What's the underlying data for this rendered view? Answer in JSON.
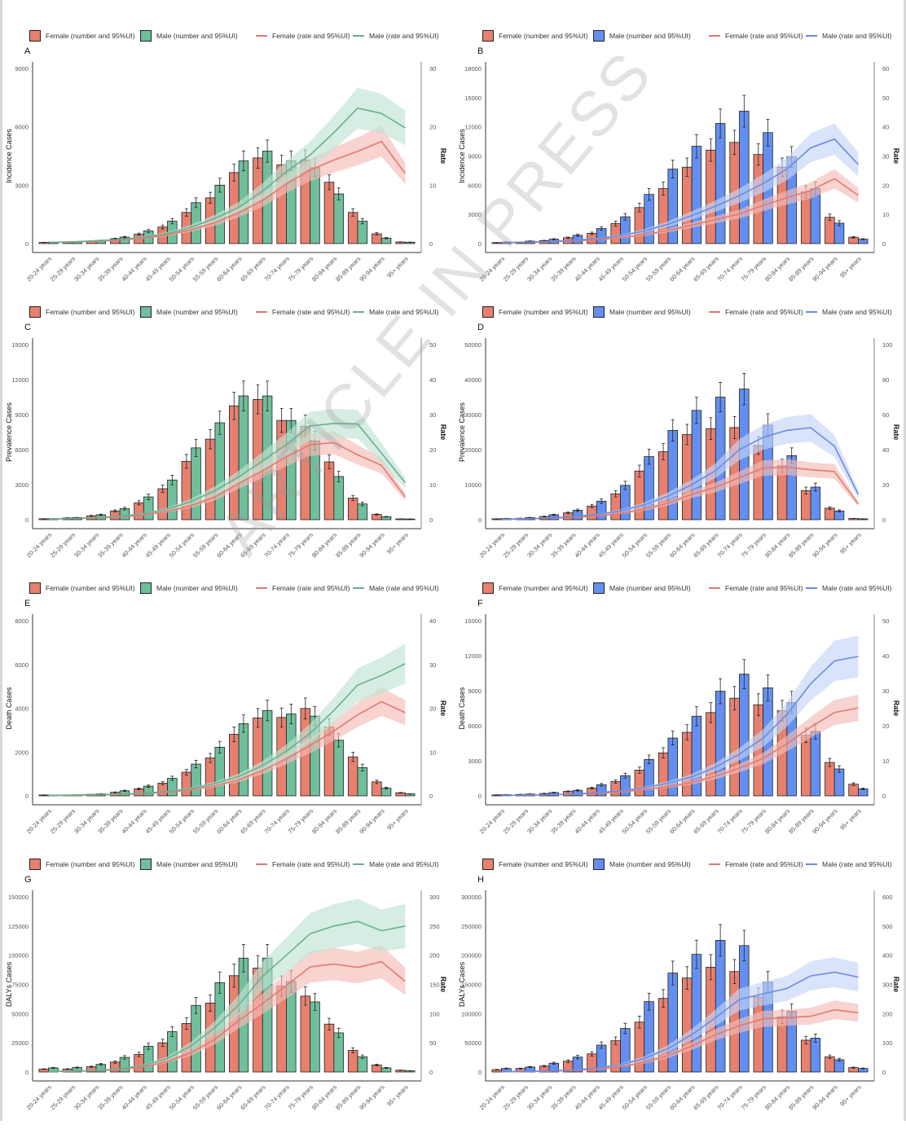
{
  "colors": {
    "female_bar": "#e8806f",
    "male_green": "#6fbf9c",
    "male_blue": "#6390f0",
    "female_line": "#e07a72",
    "male_green_line": "#6aaf92",
    "male_blue_line": "#6d8be0",
    "female_band": "#f4bcb5",
    "male_green_band": "#bfe3d3",
    "male_blue_band": "#c4d4f8"
  },
  "watermark": "ARTICLE IN PRESS",
  "categories": [
    "20-24 years",
    "25-29 years",
    "30-34 years",
    "35-39 years",
    "40-44 years",
    "45-49 years",
    "50-54 years",
    "55-59 years",
    "60-64 years",
    "65-69 years",
    "70-74 years",
    "75-79 years",
    "80-84 years",
    "85-89 years",
    "90-94 years",
    "95+ years"
  ],
  "legend_green": {
    "female_number": "Female (number and 95%UI)",
    "male_number": "Male (number and 95%UI)",
    "female_rate": "Female (rate and 95%UI)",
    "male_rate": "Male (rate and 95%UI)"
  },
  "legend_blue": {
    "female_number": "Female (number and 95%UI)",
    "male_number": "Male (number and 95%UI)",
    "female_rate": "Female (rate and 95%UI)",
    "male_rate": "Male (rate and 95%UI)"
  },
  "chart_data": [
    {
      "panel": "A",
      "type": "bar+line",
      "male_palette": "green",
      "ylabel": "Incidence Cases",
      "y2label": "Rate",
      "ylim": [
        0,
        9000
      ],
      "yticks": [
        0,
        3000,
        6000,
        9000
      ],
      "y2lim": [
        0,
        30
      ],
      "y2ticks": [
        0,
        10,
        20,
        30
      ],
      "female_number": [
        60,
        70,
        120,
        250,
        480,
        850,
        1600,
        2350,
        3650,
        4400,
        4050,
        4300,
        3150,
        1600,
        500,
        80
      ],
      "male_number": [
        70,
        90,
        160,
        330,
        650,
        1150,
        2100,
        3000,
        4250,
        4750,
        4250,
        3900,
        2550,
        1150,
        280,
        70
      ],
      "female_rate": [
        0.2,
        0.3,
        0.4,
        0.6,
        0.9,
        1.5,
        2.4,
        3.6,
        5.3,
        7.4,
        10.2,
        12.6,
        14.3,
        15.8,
        17.5,
        12.0
      ],
      "male_rate": [
        0.2,
        0.3,
        0.5,
        0.7,
        1.1,
        1.7,
        2.8,
        4.3,
        6.2,
        9.0,
        12.3,
        15.2,
        19.0,
        23.2,
        22.3,
        19.8
      ]
    },
    {
      "panel": "B",
      "type": "bar+line",
      "male_palette": "blue",
      "ylabel": "Incidence Cases",
      "y2label": "Rate",
      "ylim": [
        0,
        18000
      ],
      "yticks": [
        0,
        3000,
        6000,
        9000,
        12000,
        15000,
        18000
      ],
      "y2lim": [
        0,
        60
      ],
      "y2ticks": [
        0,
        10,
        20,
        30,
        40,
        50,
        60
      ],
      "female_number": [
        100,
        150,
        300,
        600,
        1050,
        2050,
        3700,
        5650,
        7850,
        9600,
        10400,
        9150,
        7850,
        5300,
        2700,
        650
      ],
      "male_number": [
        150,
        250,
        450,
        850,
        1550,
        2750,
        5050,
        7650,
        10000,
        12350,
        13600,
        11400,
        8900,
        5650,
        2100,
        450
      ],
      "female_rate": [
        0.3,
        0.4,
        0.6,
        0.9,
        1.3,
        2.0,
        3.0,
        4.5,
        6.3,
        8.2,
        10.1,
        13.1,
        15.7,
        18.2,
        22.2,
        16.5
      ],
      "male_rate": [
        0.3,
        0.5,
        0.7,
        1.1,
        1.7,
        2.7,
        4.3,
        6.6,
        9.6,
        12.8,
        16.4,
        20.6,
        25.5,
        32.8,
        35.8,
        27.1
      ]
    },
    {
      "panel": "C",
      "type": "bar+line",
      "male_palette": "green",
      "ylabel": "Prevalence Cases",
      "y2label": "Rate",
      "ylim": [
        0,
        15000
      ],
      "yticks": [
        0,
        3000,
        6000,
        9000,
        12000,
        15000
      ],
      "y2lim": [
        0,
        50
      ],
      "y2ticks": [
        0,
        10,
        20,
        30,
        40,
        50
      ],
      "female_number": [
        80,
        150,
        330,
        750,
        1450,
        2650,
        5000,
        6900,
        9750,
        10300,
        8500,
        8000,
        4950,
        1850,
        450,
        70
      ],
      "male_number": [
        100,
        180,
        420,
        950,
        1950,
        3400,
        6150,
        8300,
        10600,
        10600,
        8500,
        6750,
        3700,
        1350,
        250,
        60
      ],
      "female_rate": [
        0.2,
        0.3,
        0.5,
        0.8,
        1.3,
        2.4,
        4.0,
        6.5,
        10.4,
        14.0,
        18.0,
        21.4,
        22.0,
        18.5,
        15.5,
        6.5
      ],
      "male_rate": [
        0.2,
        0.3,
        0.6,
        1.0,
        1.7,
        3.0,
        5.2,
        8.3,
        12.2,
        16.8,
        21.5,
        26.8,
        27.5,
        27.3,
        19.0,
        10.5
      ]
    },
    {
      "panel": "D",
      "type": "bar+line",
      "male_palette": "blue",
      "ylabel": "Prevalence Cases",
      "y2label": "Rate",
      "ylim": [
        0,
        50000
      ],
      "yticks": [
        0,
        10000,
        20000,
        30000,
        40000,
        50000
      ],
      "y2lim": [
        0,
        100
      ],
      "y2ticks": [
        0,
        20,
        40,
        60,
        80,
        100
      ],
      "female_number": [
        250,
        400,
        900,
        1950,
        3900,
        7400,
        13900,
        19400,
        24300,
        26000,
        26300,
        21200,
        15400,
        8300,
        3300,
        350
      ],
      "male_number": [
        350,
        600,
        1400,
        2700,
        5300,
        9800,
        18000,
        25500,
        31200,
        35000,
        37300,
        27000,
        18300,
        9300,
        2500,
        250
      ],
      "female_rate": [
        0.3,
        0.5,
        0.8,
        1.3,
        2.2,
        3.6,
        6.0,
        9.5,
        14.5,
        18.5,
        24.0,
        29.5,
        30.0,
        28.5,
        27.5,
        9.0
      ],
      "male_rate": [
        0.3,
        0.5,
        1.0,
        1.7,
        3.0,
        5.0,
        8.5,
        13.5,
        20.0,
        28.0,
        40.0,
        47.0,
        51.0,
        52.5,
        42.0,
        14.5
      ]
    },
    {
      "panel": "E",
      "type": "bar+line",
      "male_palette": "green",
      "ylabel": "Death Cases",
      "y2label": "Rate",
      "ylim": [
        0,
        8000
      ],
      "yticks": [
        0,
        2000,
        4000,
        6000,
        8000
      ],
      "y2lim": [
        0,
        40
      ],
      "y2ticks": [
        0,
        10,
        20,
        30,
        40
      ],
      "female_number": [
        40,
        40,
        70,
        160,
        320,
        580,
        1080,
        1730,
        2810,
        3560,
        3580,
        3990,
        3150,
        1780,
        640,
        140
      ],
      "male_number": [
        30,
        50,
        90,
        230,
        440,
        800,
        1450,
        2220,
        3300,
        3900,
        3740,
        3640,
        2540,
        1290,
        350,
        90
      ],
      "female_rate": [
        0.1,
        0.1,
        0.2,
        0.3,
        0.5,
        0.8,
        1.4,
        2.3,
        3.7,
        5.8,
        8.5,
        11.5,
        14.8,
        18.5,
        21.5,
        19.0
      ],
      "male_rate": [
        0.1,
        0.2,
        0.3,
        0.4,
        0.6,
        1.0,
        1.7,
        2.8,
        4.4,
        6.9,
        10.2,
        14.3,
        19.5,
        25.3,
        27.5,
        30.2
      ]
    },
    {
      "panel": "F",
      "type": "bar+line",
      "male_palette": "blue",
      "ylabel": "Death Cases",
      "y2label": "Rate",
      "ylim": [
        0,
        15000
      ],
      "yticks": [
        0,
        3000,
        6000,
        9000,
        12000,
        15000
      ],
      "y2lim": [
        0,
        50
      ],
      "y2ticks": [
        0,
        10,
        20,
        30,
        40,
        50
      ],
      "female_number": [
        80,
        120,
        200,
        380,
        660,
        1220,
        2200,
        3680,
        5440,
        7130,
        8360,
        7800,
        7300,
        5180,
        2860,
        1000
      ],
      "male_number": [
        100,
        150,
        280,
        470,
        950,
        1730,
        3120,
        4950,
        6820,
        8960,
        10420,
        9250,
        7990,
        5520,
        2300,
        600
      ],
      "female_rate": [
        0.1,
        0.2,
        0.3,
        0.5,
        0.7,
        1.1,
        1.8,
        2.6,
        3.8,
        5.6,
        7.9,
        10.7,
        14.9,
        19.6,
        23.8,
        25.1
      ],
      "male_rate": [
        0.1,
        0.2,
        0.3,
        0.5,
        0.9,
        1.4,
        2.3,
        3.6,
        5.4,
        8.2,
        11.9,
        16.5,
        23.2,
        32.0,
        38.5,
        39.8
      ]
    },
    {
      "panel": "G",
      "type": "bar+line",
      "male_palette": "green",
      "ylabel": "DALYs Cases",
      "y2label": "Rate",
      "ylim": [
        0,
        150000
      ],
      "yticks": [
        0,
        25000,
        50000,
        75000,
        100000,
        125000,
        150000
      ],
      "y2lim": [
        0,
        300
      ],
      "y2ticks": [
        0,
        50,
        100,
        150,
        200,
        250,
        300
      ],
      "female_number": [
        2500,
        2500,
        4500,
        8500,
        15000,
        25000,
        41500,
        59000,
        82500,
        89000,
        73500,
        65000,
        41000,
        18500,
        6000,
        1500
      ],
      "male_number": [
        3500,
        3800,
        6500,
        12500,
        22000,
        34500,
        57000,
        76500,
        97500,
        97500,
        77500,
        60000,
        33500,
        13000,
        3500,
        1000
      ],
      "female_rate": [
        0.8,
        1.2,
        2.0,
        4.5,
        9.0,
        18.0,
        33.0,
        56.0,
        88.0,
        117.0,
        148.0,
        180.0,
        185.0,
        179.0,
        189.0,
        155.0
      ],
      "male_rate": [
        1.0,
        1.5,
        2.5,
        5.5,
        11.5,
        23.0,
        45.0,
        76.0,
        115.0,
        164.0,
        200.0,
        237.0,
        250.0,
        258.0,
        242.0,
        250.0
      ]
    },
    {
      "panel": "H",
      "type": "bar+line",
      "male_palette": "blue",
      "ylabel": "DALYs Cases",
      "y2label": "Rate",
      "ylim": [
        0,
        300000
      ],
      "yticks": [
        0,
        50000,
        100000,
        150000,
        200000,
        250000,
        300000
      ],
      "y2lim": [
        0,
        600
      ],
      "y2ticks": [
        0,
        100,
        200,
        300,
        400,
        500,
        600
      ],
      "female_number": [
        4000,
        6000,
        10000,
        18500,
        31000,
        53500,
        85500,
        126000,
        161000,
        179500,
        172000,
        128500,
        94500,
        54500,
        26000,
        7500
      ],
      "male_number": [
        6000,
        8500,
        15000,
        25500,
        46000,
        74500,
        120500,
        169500,
        201500,
        225500,
        216500,
        154000,
        104000,
        58000,
        21000,
        6000
      ],
      "female_rate": [
        1.0,
        1.5,
        2.5,
        5.0,
        9.5,
        18.0,
        33.0,
        56.0,
        89.0,
        128.0,
        158.0,
        182.0,
        186.0,
        191.0,
        213.0,
        203.0
      ],
      "male_rate": [
        1.2,
        2.0,
        3.5,
        7.0,
        13.0,
        25.0,
        46.0,
        80.0,
        128.0,
        186.0,
        248.0,
        268.0,
        286.0,
        329.0,
        342.0,
        325.0
      ]
    }
  ]
}
